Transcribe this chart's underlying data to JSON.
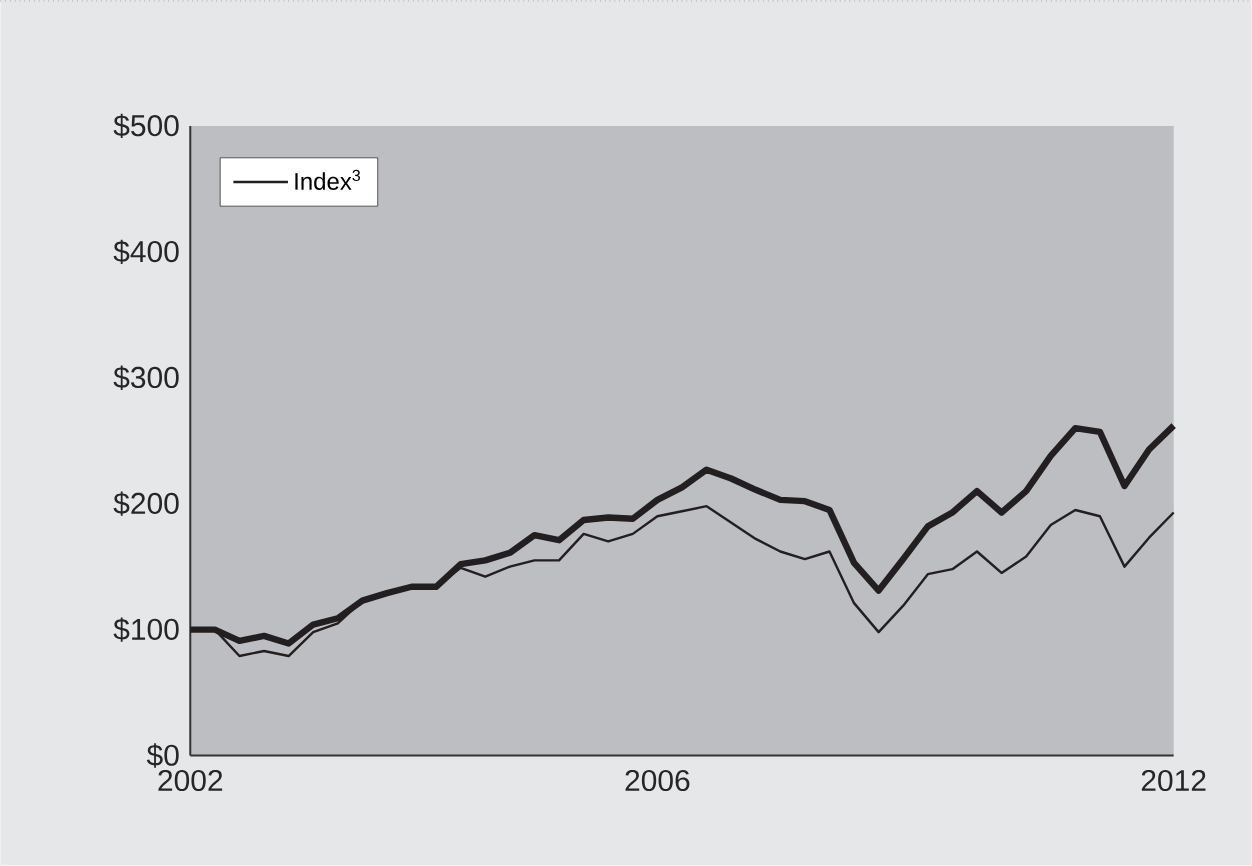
{
  "chart_data": {
    "type": "line",
    "categories": [
      "2002",
      null,
      null,
      null,
      null,
      null,
      null,
      null,
      null,
      null,
      null,
      null,
      null,
      null,
      null,
      null,
      null,
      null,
      null,
      "2006",
      null,
      null,
      null,
      null,
      null,
      null,
      null,
      null,
      null,
      null,
      null,
      null,
      null,
      null,
      null,
      null,
      null,
      null,
      null,
      null,
      "2012"
    ],
    "series": [
      {
        "color": "#231f20",
        "values": [
          100,
          100,
          91,
          95,
          89,
          104,
          109,
          123,
          129,
          134,
          134,
          152,
          155,
          161,
          175,
          171,
          187,
          189,
          188,
          203,
          213,
          227,
          220,
          211,
          203,
          202,
          195,
          153,
          131,
          156,
          182,
          193,
          210,
          193,
          210,
          238,
          260,
          257,
          214,
          243,
          262
        ]
      },
      {
        "name": "Index$^{3}$",
        "color": "#231f20",
        "values": [
          100,
          100,
          79,
          83,
          79,
          98,
          105,
          123,
          129,
          134,
          134,
          149,
          142,
          150,
          155,
          155,
          176,
          170,
          176,
          190,
          194,
          198,
          185,
          172,
          162,
          156,
          162,
          121,
          98,
          119,
          144,
          148,
          162,
          145,
          158,
          183,
          195,
          190,
          150,
          173,
          193
        ]
      }
    ],
    "ylim": [
      0,
      500
    ],
    "yticks": [
      {
        "value": 0,
        "label": "$0"
      },
      {
        "value": 100,
        "label": "$100"
      },
      {
        "value": 200,
        "label": "$200"
      },
      {
        "value": 300,
        "label": "$300"
      },
      {
        "value": 400,
        "label": "$400"
      },
      {
        "value": 500,
        "label": "$500"
      }
    ],
    "legend": "top left",
    "grid": false,
    "marker": "none",
    "line_style": "solid"
  }
}
